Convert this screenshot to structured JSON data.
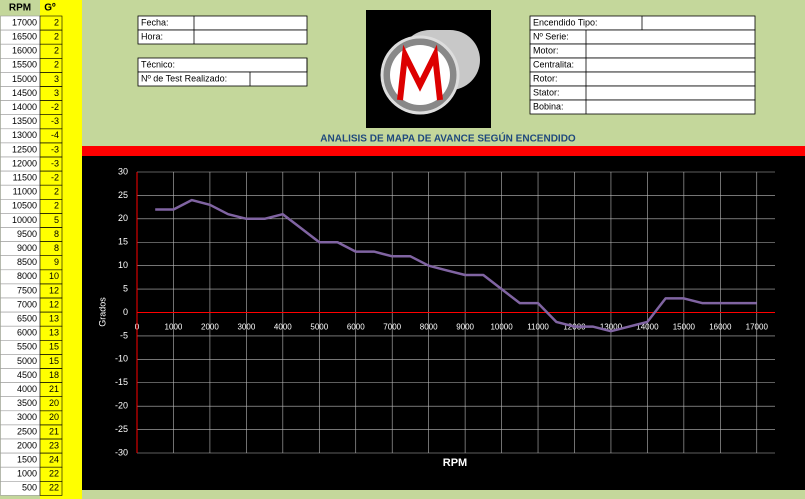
{
  "table": {
    "header": [
      "RPM",
      "Gº"
    ],
    "rows": [
      [
        17000,
        2
      ],
      [
        16500,
        2
      ],
      [
        16000,
        2
      ],
      [
        15500,
        2
      ],
      [
        15000,
        3
      ],
      [
        14500,
        3
      ],
      [
        14000,
        -2
      ],
      [
        13500,
        -3
      ],
      [
        13000,
        -4
      ],
      [
        12500,
        -3
      ],
      [
        12000,
        -3
      ],
      [
        11500,
        -2
      ],
      [
        11000,
        2
      ],
      [
        10500,
        2
      ],
      [
        10000,
        5
      ],
      [
        9500,
        8
      ],
      [
        9000,
        8
      ],
      [
        8500,
        9
      ],
      [
        8000,
        10
      ],
      [
        7500,
        12
      ],
      [
        7000,
        12
      ],
      [
        6500,
        13
      ],
      [
        6000,
        13
      ],
      [
        5500,
        15
      ],
      [
        5000,
        15
      ],
      [
        4500,
        18
      ],
      [
        4000,
        21
      ],
      [
        3500,
        20
      ],
      [
        3000,
        20
      ],
      [
        2500,
        21
      ],
      [
        2000,
        23
      ],
      [
        1500,
        24
      ],
      [
        1000,
        22
      ],
      [
        500,
        22
      ]
    ]
  },
  "form": {
    "left_top": [
      "Fecha:",
      "Hora:"
    ],
    "left_bottom": [
      "Técnico:",
      "Nº de Test Realizado:"
    ],
    "right": [
      "Encendido Tipo:",
      "Nº Serie:",
      "Motor:",
      "Centralita:",
      "Rotor:",
      "Stator:",
      "Bobina:"
    ]
  },
  "chart_data": {
    "type": "line",
    "title": "ANALISIS DE MAPA DE AVANCE SEGÚN ENCENDIDO",
    "x_label": "RPM",
    "y_label": "Grados",
    "x": [
      500,
      1000,
      1500,
      2000,
      2500,
      3000,
      3500,
      4000,
      4500,
      5000,
      5500,
      6000,
      6500,
      7000,
      7500,
      8000,
      8500,
      9000,
      9500,
      10000,
      10500,
      11000,
      11500,
      12000,
      12500,
      13000,
      13500,
      14000,
      14500,
      15000,
      15500,
      16000,
      16500,
      17000
    ],
    "values": [
      22,
      22,
      24,
      23,
      21,
      20,
      20,
      21,
      18,
      15,
      15,
      13,
      13,
      12,
      12,
      10,
      9,
      8,
      8,
      5,
      2,
      2,
      -2,
      -3,
      -3,
      -4,
      -3,
      -2,
      3,
      3,
      2,
      2,
      2,
      2
    ],
    "color": "#8064a2",
    "xlim": [
      0,
      17500
    ],
    "xticks": [
      0,
      1000,
      2000,
      3000,
      4000,
      5000,
      6000,
      7000,
      8000,
      9000,
      10000,
      11000,
      12000,
      13000,
      14000,
      15000,
      16000,
      17000
    ],
    "ylim": [
      -30,
      30
    ],
    "yticks": [
      -30,
      -25,
      -20,
      -15,
      -10,
      -5,
      0,
      5,
      10,
      15,
      20,
      25,
      30
    ],
    "grid": true
  }
}
